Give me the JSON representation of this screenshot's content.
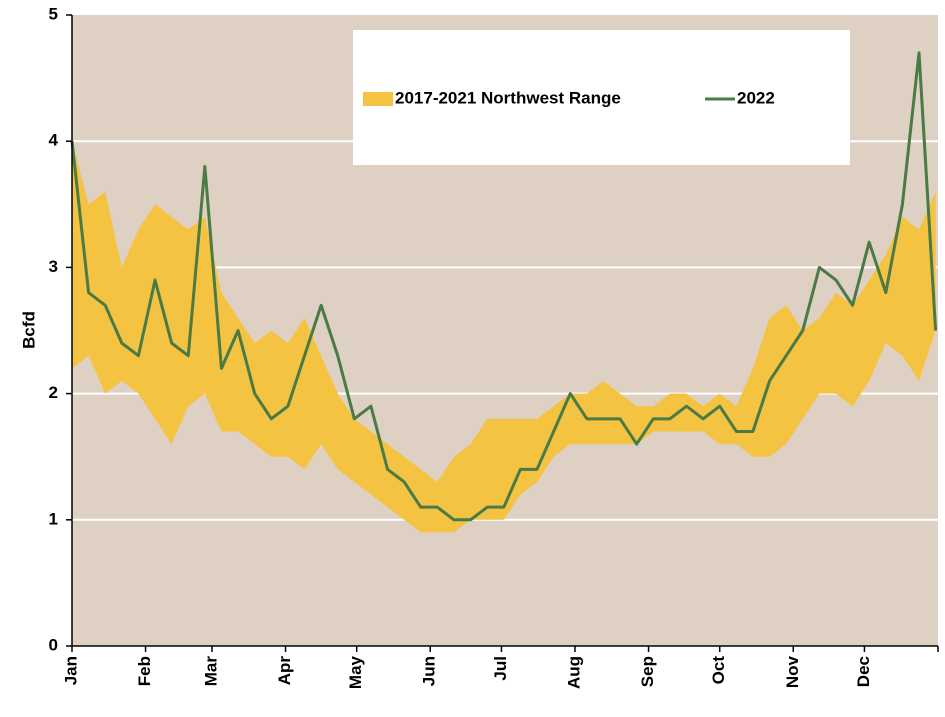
{
  "chart_data": {
    "type": "range-line",
    "y_label": "Bcfd",
    "x": [
      1,
      8,
      15,
      22,
      29,
      36,
      43,
      50,
      57,
      64,
      71,
      78,
      85,
      92,
      99,
      106,
      113,
      120,
      127,
      134,
      141,
      148,
      155,
      162,
      169,
      176,
      183,
      190,
      197,
      204,
      211,
      218,
      225,
      232,
      239,
      246,
      253,
      260,
      267,
      274,
      281,
      288,
      295,
      302,
      309,
      316,
      323,
      330,
      337,
      344,
      351,
      358,
      365
    ],
    "xlim": [
      1,
      366
    ],
    "xticks": [
      {
        "value": 1,
        "label": "Jan"
      },
      {
        "value": 32,
        "label": "Feb"
      },
      {
        "value": 60,
        "label": "Mar"
      },
      {
        "value": 91,
        "label": "Apr"
      },
      {
        "value": 121,
        "label": "May"
      },
      {
        "value": 152,
        "label": "Jun"
      },
      {
        "value": 182,
        "label": "Jul"
      },
      {
        "value": 213,
        "label": "Aug"
      },
      {
        "value": 244,
        "label": "Sep"
      },
      {
        "value": 274,
        "label": "Oct"
      },
      {
        "value": 305,
        "label": "Nov"
      },
      {
        "value": 335,
        "label": "Dec"
      }
    ],
    "ylim": [
      0,
      5
    ],
    "yticks": [
      0,
      1,
      2,
      3,
      4,
      5
    ],
    "grid": true,
    "legend": "upper right",
    "series": [
      {
        "name": "2017-2021 Northwest Range",
        "color": "#f5c342",
        "low": [
          2.2,
          2.3,
          2.0,
          2.1,
          2.0,
          1.8,
          1.6,
          1.9,
          2.0,
          1.7,
          1.7,
          1.6,
          1.5,
          1.5,
          1.4,
          1.6,
          1.4,
          1.3,
          1.2,
          1.1,
          1.0,
          0.9,
          0.9,
          0.9,
          1.0,
          1.0,
          1.0,
          1.2,
          1.3,
          1.5,
          1.6,
          1.6,
          1.6,
          1.6,
          1.6,
          1.7,
          1.7,
          1.7,
          1.7,
          1.6,
          1.6,
          1.5,
          1.5,
          1.6,
          1.8,
          2.0,
          2.0,
          1.9,
          2.1,
          2.4,
          2.3,
          2.1,
          2.5
        ],
        "high": [
          4.0,
          3.5,
          3.6,
          3.0,
          3.3,
          3.5,
          3.4,
          3.3,
          3.4,
          2.8,
          2.6,
          2.4,
          2.5,
          2.4,
          2.6,
          2.3,
          2.0,
          1.8,
          1.7,
          1.6,
          1.5,
          1.4,
          1.3,
          1.5,
          1.6,
          1.8,
          1.8,
          1.8,
          1.8,
          1.9,
          2.0,
          2.0,
          2.1,
          2.0,
          1.9,
          1.9,
          2.0,
          2.0,
          1.9,
          2.0,
          1.9,
          2.2,
          2.6,
          2.7,
          2.5,
          2.6,
          2.8,
          2.7,
          2.9,
          3.1,
          3.4,
          3.3,
          3.6
        ]
      },
      {
        "name": "2022",
        "color": "#4a7a45",
        "values": [
          4.0,
          2.8,
          2.7,
          2.4,
          2.3,
          2.9,
          2.4,
          2.3,
          3.8,
          2.2,
          2.5,
          2.0,
          1.8,
          1.9,
          2.3,
          2.7,
          2.3,
          1.8,
          1.9,
          1.4,
          1.3,
          1.1,
          1.1,
          1.0,
          1.0,
          1.1,
          1.1,
          1.4,
          1.4,
          1.7,
          2.0,
          1.8,
          1.8,
          1.8,
          1.6,
          1.8,
          1.8,
          1.9,
          1.8,
          1.9,
          1.7,
          1.7,
          2.1,
          2.3,
          2.5,
          3.0,
          2.9,
          2.7,
          3.2,
          2.8,
          3.5,
          4.7,
          2.5
        ]
      }
    ]
  }
}
